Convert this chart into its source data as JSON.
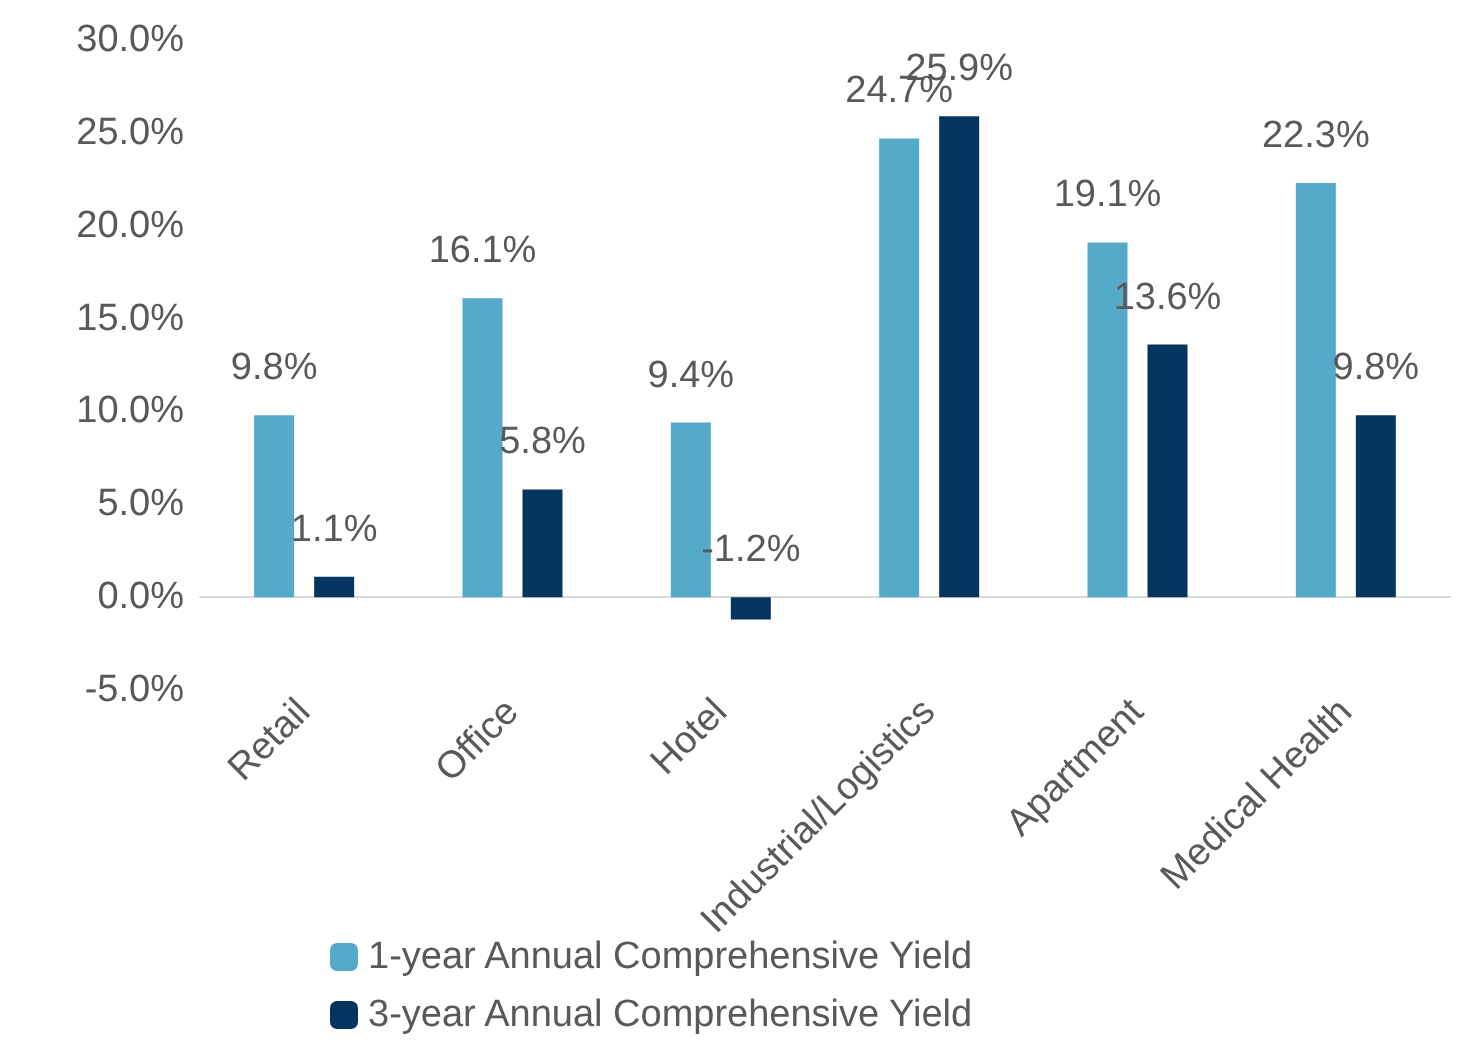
{
  "chart_data": {
    "type": "bar",
    "categories": [
      "Retail",
      "Office",
      "Hotel",
      "Industrial/Logistics",
      "Apartment",
      "Medical Health"
    ],
    "series": [
      {
        "name": "1-year Annual Comprehensive Yield",
        "color": "#55a9c9",
        "values": [
          9.8,
          16.1,
          9.4,
          24.7,
          19.1,
          22.3
        ],
        "value_labels": [
          "9.8%",
          "16.1%",
          "9.4%",
          "24.7%",
          "19.1%",
          "22.3%"
        ]
      },
      {
        "name": "3-year Annual Comprehensive Yield",
        "color": "#05355f",
        "values": [
          1.1,
          5.8,
          -1.2,
          25.9,
          13.6,
          9.8
        ],
        "value_labels": [
          "1.1%",
          "5.8%",
          "-1.2%",
          "25.9%",
          "13.6%",
          "9.8%"
        ]
      }
    ],
    "ylim": [
      -5,
      30
    ],
    "yticks": [
      {
        "value": -5,
        "label": "-5.0%"
      },
      {
        "value": 0,
        "label": "0.0%"
      },
      {
        "value": 5,
        "label": "5.0%"
      },
      {
        "value": 10,
        "label": "10.0%"
      },
      {
        "value": 15,
        "label": "15.0%"
      },
      {
        "value": 20,
        "label": "20.0%"
      },
      {
        "value": 25,
        "label": "25.0%"
      },
      {
        "value": 30,
        "label": "30.0%"
      }
    ],
    "grid": false,
    "legend": "bottom"
  }
}
